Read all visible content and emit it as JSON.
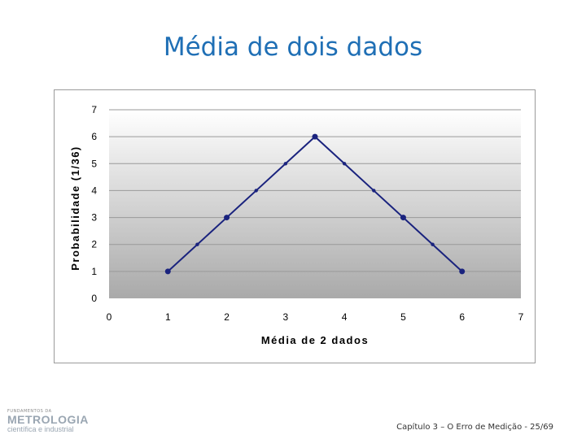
{
  "slide": {
    "title": "Média de dois dados",
    "footer": "Capítulo 3 – O Erro de Medição - 25/69"
  },
  "logo": {
    "top_text": "FUNDAMENTOS DA",
    "main_text": "METROLOGIA",
    "sub_text": "científica e industrial"
  },
  "chart_data": {
    "type": "line",
    "title": "",
    "xlabel": "Média de 2 dados",
    "ylabel": "Probabilidade (1/36)",
    "xlim": [
      0,
      7
    ],
    "ylim": [
      0,
      7
    ],
    "xticks": [
      0,
      1,
      2,
      3,
      4,
      5,
      6,
      7
    ],
    "yticks": [
      0,
      1,
      2,
      3,
      4,
      5,
      6,
      7
    ],
    "grid": true,
    "legend": "none",
    "colors": {
      "line": "#1a237e",
      "plot_bg_top": "#ffffff",
      "plot_bg_bottom": "#a9a9a9",
      "grid": "#9a9a9a"
    },
    "series": [
      {
        "x": [
          1,
          1.5,
          2,
          2.5,
          3,
          3.5,
          4,
          4.5,
          5,
          5.5,
          6
        ],
        "y": [
          1,
          2,
          3,
          4,
          5,
          6,
          5,
          4,
          3,
          2,
          1
        ]
      }
    ],
    "emphasized_points": [
      {
        "x": 1,
        "y": 1
      },
      {
        "x": 2,
        "y": 3
      },
      {
        "x": 3.5,
        "y": 6
      },
      {
        "x": 5,
        "y": 3
      },
      {
        "x": 6,
        "y": 1
      }
    ]
  }
}
